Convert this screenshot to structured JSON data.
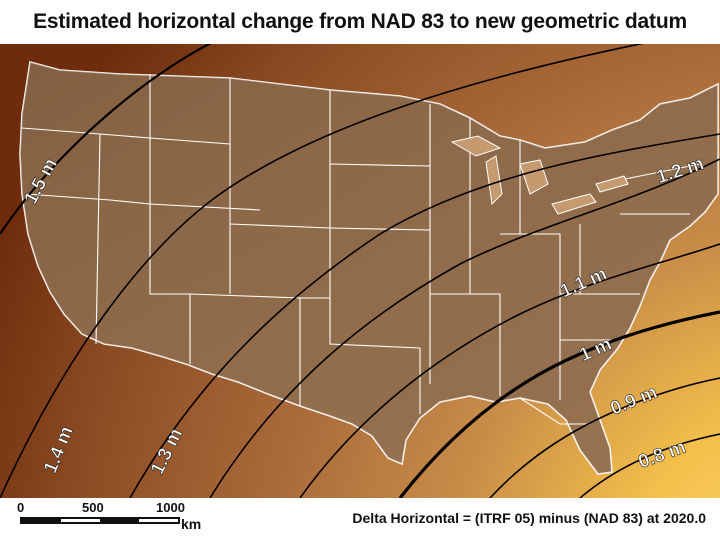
{
  "title": "Estimated horizontal change from NAD 83 to new geometric datum",
  "contours": [
    {
      "label": "1.5 m"
    },
    {
      "label": "1.4 m"
    },
    {
      "label": "1.3 m"
    },
    {
      "label": "1.2 m"
    },
    {
      "label": "1.1 m"
    },
    {
      "label": "1 m"
    },
    {
      "label": "0.9 m"
    },
    {
      "label": "0.8 m"
    }
  ],
  "scale_bar": {
    "ticks": [
      "0",
      "500",
      "1000"
    ],
    "unit": "km"
  },
  "caption": "Delta Horizontal = (ITRF 05) minus (NAD 83) at 2020.0",
  "colors": {
    "gradient_dark": "#7a3410",
    "gradient_mid": "#b9773a",
    "gradient_light": "#f7cd58",
    "contour_line": "#000000",
    "boundary_line": "#ffffff"
  }
}
